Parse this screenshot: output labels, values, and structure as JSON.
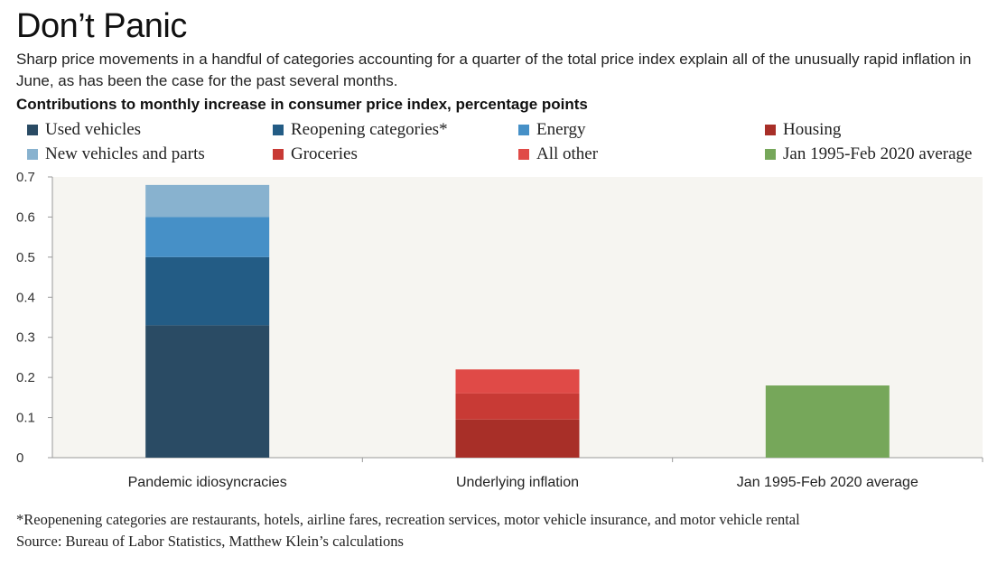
{
  "title": "Don’t Panic",
  "subtitle": "Sharp price movements in a handful of categories accounting for a quarter of the total price index explain all of the unusually rapid inflation in June, as has been the case for the past several months.",
  "chart_heading": "Contributions to monthly increase in consumer price index, percentage points",
  "legend": [
    {
      "label": "Used vehicles",
      "color": "#2a4b64"
    },
    {
      "label": "Reopening categories*",
      "color": "#235c85"
    },
    {
      "label": "Energy",
      "color": "#4690c7"
    },
    {
      "label": "Housing",
      "color": "#a82f28"
    },
    {
      "label": "New vehicles and parts",
      "color": "#88b2cf"
    },
    {
      "label": "Groceries",
      "color": "#c83a35"
    },
    {
      "label": "All other",
      "color": "#e04a47"
    },
    {
      "label": "Jan 1995-Feb 2020 average",
      "color": "#76a75a"
    }
  ],
  "chart_data": {
    "type": "bar",
    "stacked": true,
    "categories": [
      "Pandemic idiosyncracies",
      "Underlying inflation",
      "Jan 1995-Feb 2020 average"
    ],
    "series": [
      {
        "name": "Used vehicles",
        "color": "#2a4b64",
        "values": [
          0.33,
          0,
          0
        ]
      },
      {
        "name": "Reopening categories*",
        "color": "#235c85",
        "values": [
          0.17,
          0,
          0
        ]
      },
      {
        "name": "Energy",
        "color": "#4690c7",
        "values": [
          0.1,
          0,
          0
        ]
      },
      {
        "name": "New vehicles and parts",
        "color": "#88b2cf",
        "values": [
          0.08,
          0,
          0
        ]
      },
      {
        "name": "Housing",
        "color": "#a82f28",
        "values": [
          0,
          0.095,
          0
        ]
      },
      {
        "name": "Groceries",
        "color": "#c83a35",
        "values": [
          0,
          0.065,
          0
        ]
      },
      {
        "name": "All other",
        "color": "#e04a47",
        "values": [
          0,
          0.06,
          0
        ]
      },
      {
        "name": "Jan 1995-Feb 2020 average",
        "color": "#76a75a",
        "values": [
          0,
          0,
          0.18
        ]
      }
    ],
    "y_ticks": [
      "0",
      "0.1",
      "0.2",
      "0.3",
      "0.4",
      "0.5",
      "0.6",
      "0.7"
    ],
    "ylim": [
      0,
      0.7
    ],
    "grid": false,
    "plot_background": "#f6f5f1"
  },
  "footnote": "*Reopenening categories are restaurants, hotels, airline fares, recreation services, motor vehicle insurance, and motor vehicle rental",
  "source": "Source: Bureau of Labor Statistics, Matthew Klein’s calculations"
}
